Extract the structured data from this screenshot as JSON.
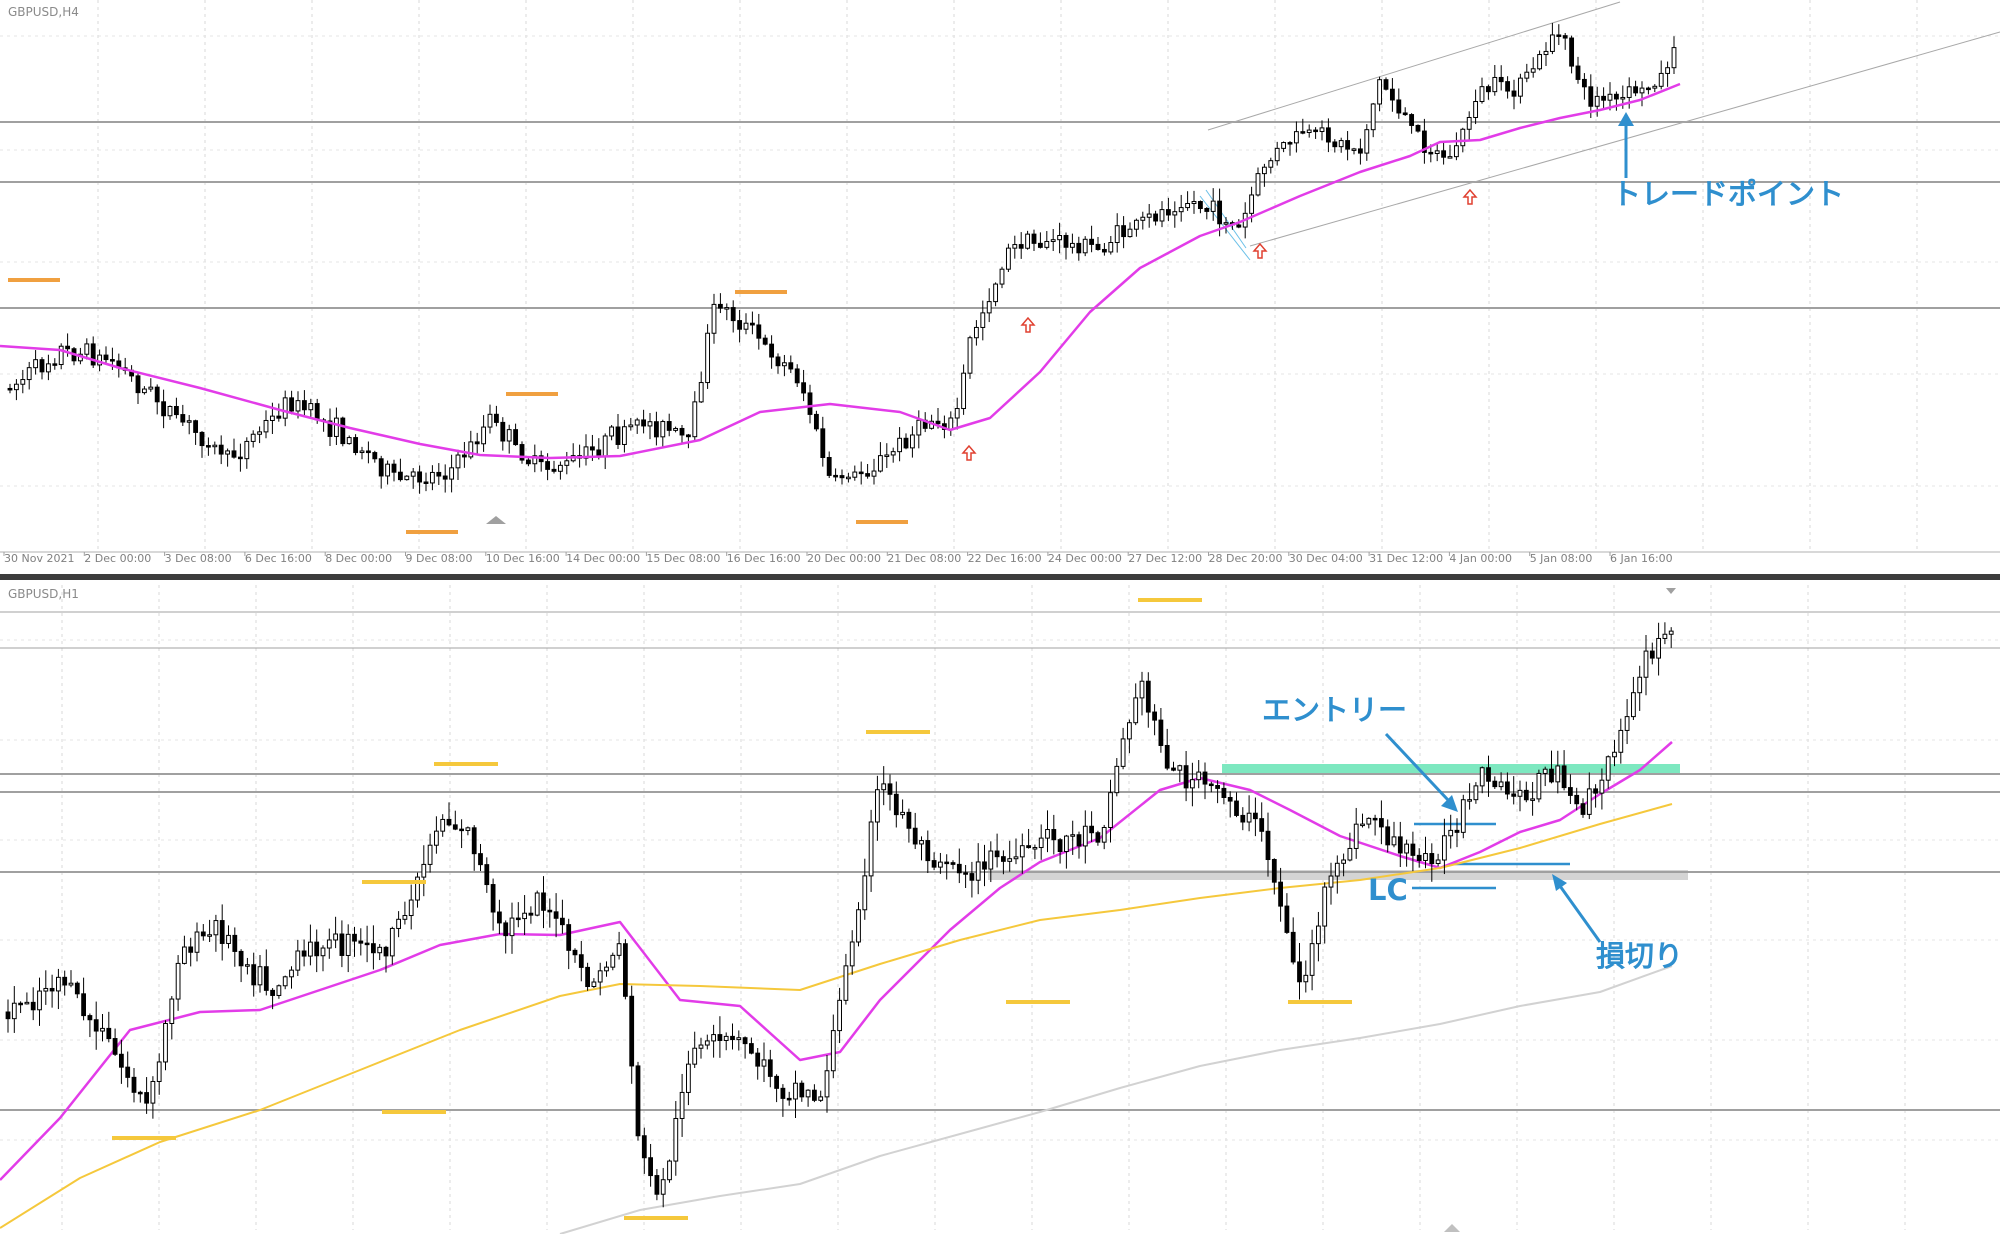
{
  "panels": [
    {
      "symbol": "GBPUSD,H4"
    },
    {
      "symbol": "GBPUSD,H1"
    }
  ],
  "chart_data": [
    {
      "type": "candlestick",
      "symbol": "GBPUSD,H4",
      "timeframe": "H4",
      "x_tick_labels": [
        "30 Nov 2021",
        "2 Dec 00:00",
        "3 Dec 08:00",
        "6 Dec 16:00",
        "8 Dec 00:00",
        "9 Dec 08:00",
        "10 Dec 16:00",
        "14 Dec 00:00",
        "15 Dec 08:00",
        "16 Dec 16:00",
        "20 Dec 00:00",
        "21 Dec 08:00",
        "22 Dec 16:00",
        "24 Dec 00:00",
        "27 Dec 12:00",
        "28 Dec 20:00",
        "30 Dec 04:00",
        "31 Dec 12:00",
        "4 Jan 00:00",
        "5 Jan 08:00",
        "6 Jan 16:00"
      ],
      "grid": true,
      "moving_average_color": "#e23ce8",
      "annotations": [
        {
          "text": "トレードポイント",
          "color": "#2f8fce"
        }
      ]
    },
    {
      "type": "candlestick",
      "symbol": "GBPUSD,H1",
      "timeframe": "H1",
      "grid": true,
      "moving_average_colors": [
        "#e23ce8",
        "#f5c83c",
        "#d2d2d2"
      ],
      "annotations": [
        {
          "text": "エントリー",
          "color": "#2f8fce"
        },
        {
          "text": "LC",
          "color": "#2f8fce"
        },
        {
          "text": "損切り",
          "color": "#2f8fce"
        }
      ]
    }
  ],
  "colors": {
    "bull": "#ffffff",
    "bear": "#000000",
    "swing_orange": "#f0a040",
    "swing_yellow": "#f5c83c",
    "entry_zone": "#7de8c0",
    "sl_zone": "#d4d4d4"
  }
}
